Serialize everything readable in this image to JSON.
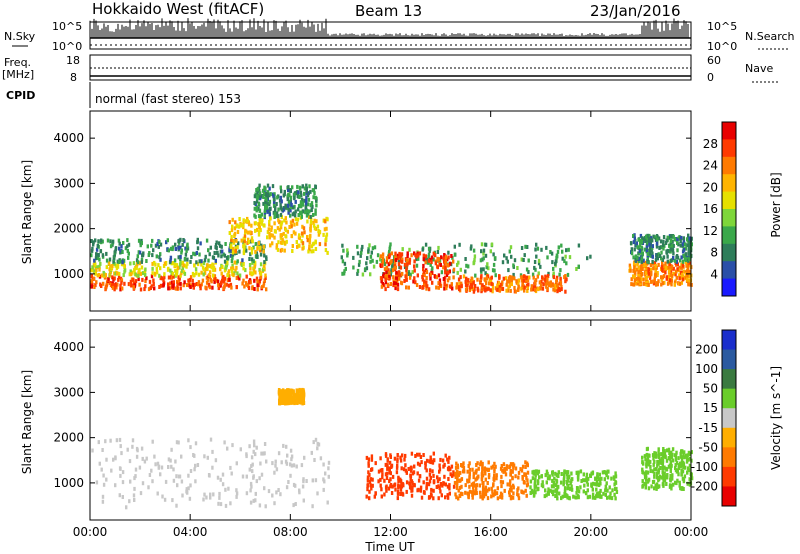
{
  "header": {
    "title": "Hokkaido West (fitACF)",
    "beam": "Beam 13",
    "date": "23/Jan/2016"
  },
  "noise_panel": {
    "left_label": "N.Sky",
    "right_label": "N.Search",
    "ticks": [
      "10^5",
      "10^0"
    ],
    "ticks_right": [
      "10^5",
      "10^0"
    ]
  },
  "freq_panel": {
    "left_label_top": "Freq.",
    "left_label_unit": "[MHz]",
    "left_ticks": [
      "18",
      "8"
    ],
    "right_label": "Nave",
    "right_ticks": [
      "60",
      "0"
    ]
  },
  "cpid_panel": {
    "label": "CPID",
    "text": "normal (fast stereo) 153"
  },
  "x_axis": {
    "label": "Time UT",
    "ticks": [
      "00:00",
      "04:00",
      "08:00",
      "12:00",
      "16:00",
      "20:00",
      "00:00"
    ]
  },
  "power_colorbar": {
    "title": "Power [dB]",
    "ticks": [
      "28",
      "24",
      "20",
      "16",
      "12",
      "8",
      "4"
    ],
    "colors": [
      "#e80000",
      "#ff3a00",
      "#ff7a00",
      "#ffb400",
      "#e6e000",
      "#7ed63a",
      "#3aa84a",
      "#2e7d5a",
      "#2a4fa8",
      "#1a1aff"
    ]
  },
  "velocity_colorbar": {
    "title": "Velocity [m s^-1]",
    "ticks": [
      "200",
      "100",
      "50",
      "15",
      "-15",
      "-50",
      "-100",
      "-200"
    ],
    "colors": [
      "#1a2ecc",
      "#2b5aa0",
      "#3a7a40",
      "#6acd2a",
      "#c8c8c8",
      "#ffae00",
      "#ff7a00",
      "#ff3a00",
      "#e80000"
    ]
  },
  "chart_data": [
    {
      "type": "heatmap",
      "title": "",
      "xlabel": "",
      "ylabel": "Slant Range [km]",
      "y_ticks": [
        1000,
        2000,
        3000,
        4000
      ],
      "ylim": [
        180,
        4600
      ],
      "xlim_hours": [
        0,
        24
      ],
      "colorbar": "Power [dB]",
      "regions": [
        {
          "t0": 0.0,
          "t1": 7.0,
          "r0": 700,
          "r1": 1000,
          "value": 28
        },
        {
          "t0": 0.0,
          "t1": 7.0,
          "r0": 1000,
          "r1": 1300,
          "value": 18
        },
        {
          "t0": 0.0,
          "t1": 7.0,
          "r0": 1300,
          "r1": 1800,
          "value": 8
        },
        {
          "t0": 5.5,
          "t1": 9.5,
          "r0": 1500,
          "r1": 2300,
          "value": 20
        },
        {
          "t0": 6.5,
          "t1": 9.0,
          "r0": 2300,
          "r1": 3000,
          "value": 8
        },
        {
          "t0": 10.0,
          "t1": 20.0,
          "r0": 1000,
          "r1": 1700,
          "value": 10
        },
        {
          "t0": 11.5,
          "t1": 14.5,
          "r0": 700,
          "r1": 1500,
          "value": 28
        },
        {
          "t0": 14.5,
          "t1": 19.0,
          "r0": 650,
          "r1": 1000,
          "value": 26
        },
        {
          "t0": 21.5,
          "t1": 24.0,
          "r0": 800,
          "r1": 1300,
          "value": 24
        },
        {
          "t0": 21.5,
          "t1": 24.0,
          "r0": 1300,
          "r1": 1900,
          "value": 8
        }
      ]
    },
    {
      "type": "heatmap",
      "title": "",
      "xlabel": "Time UT",
      "ylabel": "Slant Range [km]",
      "y_ticks": [
        1000,
        2000,
        3000,
        4000
      ],
      "ylim": [
        180,
        4600
      ],
      "xlim_hours": [
        0,
        24
      ],
      "colorbar": "Velocity [m s^-1]",
      "regions": [
        {
          "t0": 0.0,
          "t1": 9.5,
          "r0": 500,
          "r1": 2000,
          "value": 0
        },
        {
          "t0": 7.5,
          "t1": 8.5,
          "r0": 2800,
          "r1": 3100,
          "value": -40
        },
        {
          "t0": 11.0,
          "t1": 14.5,
          "r0": 700,
          "r1": 1700,
          "value": -120
        },
        {
          "t0": 14.5,
          "t1": 17.5,
          "r0": 700,
          "r1": 1500,
          "value": -80
        },
        {
          "t0": 17.5,
          "t1": 21.0,
          "r0": 700,
          "r1": 1300,
          "value": 20
        },
        {
          "t0": 22.0,
          "t1": 24.0,
          "r0": 900,
          "r1": 1800,
          "value": 30
        }
      ]
    }
  ]
}
